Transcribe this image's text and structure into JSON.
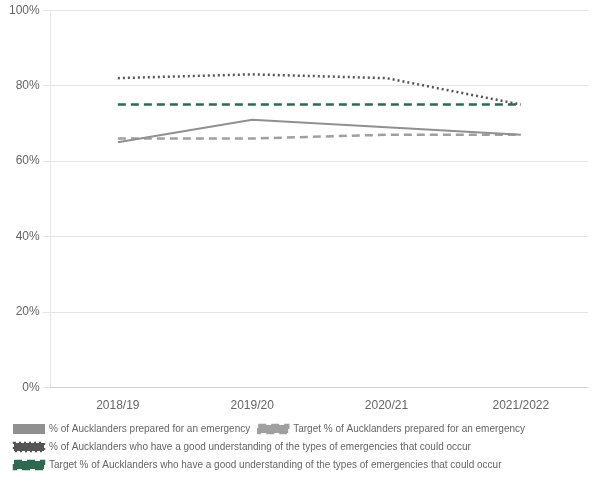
{
  "chart_data": {
    "type": "line",
    "categories": [
      "2018/19",
      "2019/20",
      "2020/21",
      "2021/2022"
    ],
    "series": [
      {
        "name": "% of Aucklanders prepared for an emergency",
        "color": "#909090",
        "line_style": "solid",
        "values": [
          65,
          71,
          69,
          67
        ]
      },
      {
        "name": "Target % of Aucklanders prepared for an emergency",
        "color": "#a0a0a0",
        "line_style": "dashed",
        "values": [
          66,
          66,
          67,
          67
        ]
      },
      {
        "name": "% of Aucklanders who have a good understanding of the types of emergencies that could occur",
        "color": "#555555",
        "line_style": "dotted",
        "values": [
          82,
          83,
          82,
          75
        ]
      },
      {
        "name": "Target % of Aucklanders who have a good understanding of the types of emergencies that could occur",
        "color": "#2d6a4f",
        "line_style": "dashed",
        "values": [
          75,
          75,
          75,
          75
        ]
      }
    ],
    "ylim": [
      0,
      100
    ],
    "yticks": [
      {
        "value": 0,
        "label": "0%"
      },
      {
        "value": 20,
        "label": "20%"
      },
      {
        "value": 40,
        "label": "40%"
      },
      {
        "value": 60,
        "label": "60%"
      },
      {
        "value": 80,
        "label": "80%"
      },
      {
        "value": 100,
        "label": "100%"
      }
    ],
    "grid": true,
    "legend": "bottom"
  }
}
